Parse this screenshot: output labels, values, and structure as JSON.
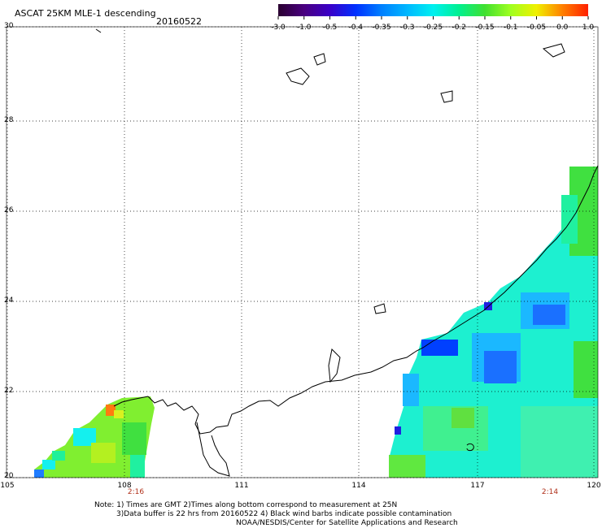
{
  "header": {
    "title": "ASCAT 25KM MLE-1 descending",
    "date": "20160522"
  },
  "colorbar": {
    "labels": [
      "-3.0",
      "-1.0",
      "-0.5",
      "-0.4",
      "-0.35",
      "-0.3",
      "-0.25",
      "-0.2",
      "-0.15",
      "-0.1",
      "-0.05",
      "0.0",
      "1.0"
    ],
    "colors": [
      "#2a0030",
      "#4a0080",
      "#3a00c8",
      "#0030ff",
      "#0080ff",
      "#00b8ff",
      "#00f0f0",
      "#00f090",
      "#40e030",
      "#a0ff20",
      "#f0f000",
      "#ff8000",
      "#ff2000"
    ]
  },
  "axes": {
    "lat_labels": [
      "30",
      "28",
      "26",
      "24",
      "22",
      "20"
    ],
    "lon_labels": [
      "105",
      "108",
      "111",
      "114",
      "117",
      "120"
    ]
  },
  "pass_times": {
    "left": "2:16",
    "right": "2:14"
  },
  "notes": {
    "line1": "Note: 1) Times are GMT 2)Times along bottom correspond to measurement at 25N",
    "line2": "3)Data buffer is 22 hrs from 20160522 4) Black wind barbs indicate possible contamination",
    "line3": "NOAA/NESDIS/Center for Satellite Applications and Research"
  }
}
